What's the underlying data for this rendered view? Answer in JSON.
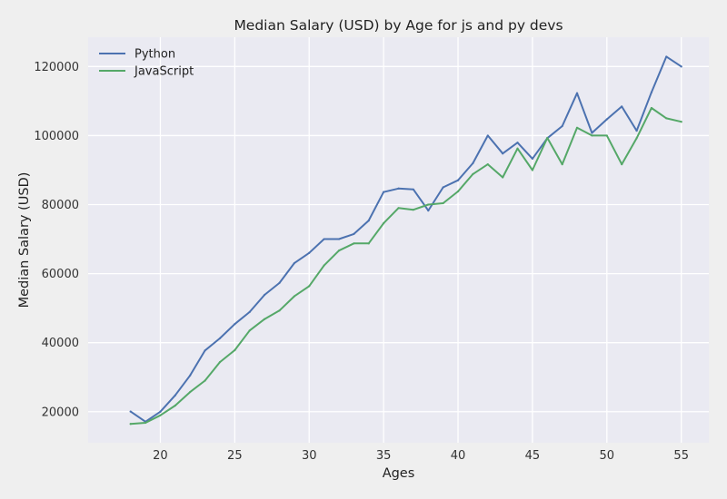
{
  "chart_data": {
    "type": "line",
    "title": "Median Salary (USD) by Age for js and py devs",
    "xlabel": "Ages",
    "ylabel": "Median Salary (USD)",
    "xlim": [
      15.15,
      56.85
    ],
    "ylim": [
      11000,
      128500
    ],
    "xticks": [
      20,
      25,
      30,
      35,
      40,
      45,
      50,
      55
    ],
    "yticks": [
      20000,
      40000,
      60000,
      80000,
      100000,
      120000
    ],
    "grid": true,
    "legend_position": "top-left",
    "x": [
      18,
      19,
      20,
      21,
      22,
      23,
      24,
      25,
      26,
      27,
      28,
      29,
      30,
      31,
      32,
      33,
      34,
      35,
      36,
      37,
      38,
      39,
      40,
      41,
      42,
      43,
      44,
      45,
      46,
      47,
      48,
      49,
      50,
      51,
      52,
      53,
      54,
      55
    ],
    "series": [
      {
        "name": "Python",
        "color": "#4c72b0",
        "values": [
          20046,
          17100,
          20000,
          24744,
          30500,
          37732,
          41247,
          45372,
          48876,
          53850,
          57287,
          63016,
          65998,
          70003,
          70000,
          71496,
          75370,
          83640,
          84666,
          84392,
          78254,
          85000,
          87038,
          91991,
          100000,
          94796,
          97962,
          93302,
          99240,
          102736,
          112285,
          100771,
          104708,
          108423,
          101407,
          112542,
          122870,
          120000
        ]
      },
      {
        "name": "JavaScript",
        "color": "#55a868",
        "values": [
          16446,
          16791,
          18942,
          21780,
          25704,
          29000,
          34372,
          37810,
          43515,
          46823,
          49293,
          53437,
          56373,
          62375,
          66674,
          68745,
          68746,
          74583,
          79000,
          78508,
          79996,
          80403,
          83820,
          88833,
          91660,
          87892,
          96243,
          90000,
          99313,
          91660,
          102264,
          100000,
          100000,
          91660,
          99240,
          108000,
          105000,
          104000
        ]
      }
    ]
  }
}
